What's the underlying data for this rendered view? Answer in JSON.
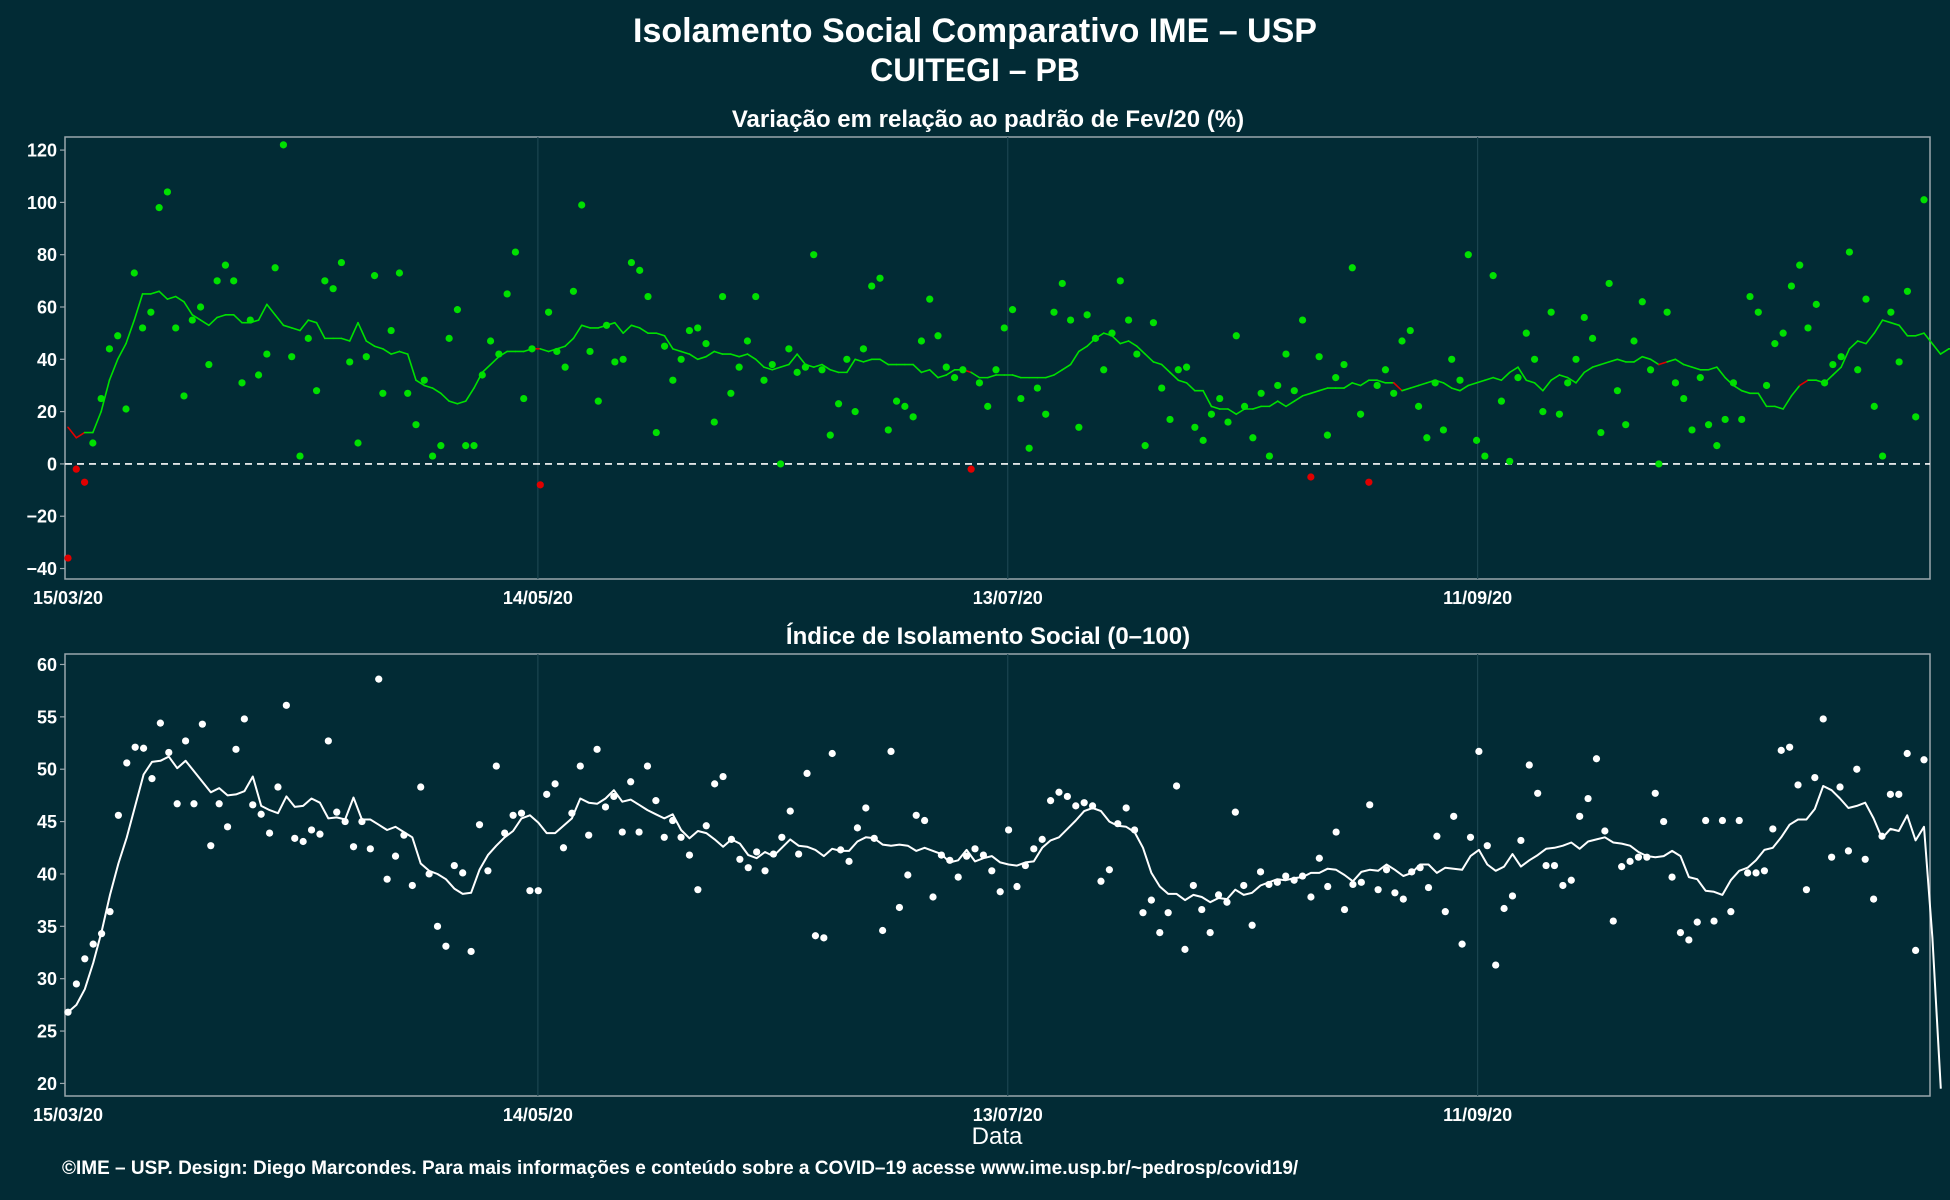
{
  "header": {
    "title": "Isolamento Social Comparativo IME – USP",
    "subtitle": "CUITEGI – PB"
  },
  "footer": {
    "credit": "©IME – USP. Design: Diego Marcondes. Para mais informações e conteúdo sobre a COVID–19 acesse www.ime.usp.br/~pedrosp/covid19/"
  },
  "colors": {
    "background": "#022b35",
    "panel_border": "#9aa7ad",
    "grid": "#1b4550",
    "positive": "#00e000",
    "negative": "#e00000",
    "index": "#ffffff"
  },
  "chart_data": [
    {
      "type": "scatter",
      "title": "Variação em relação ao padrão de Fev/20 (%)",
      "xlabel": "",
      "ylabel": "",
      "x_start": "15/03/20",
      "x_end": "07/11/20",
      "x_ticks": [
        "15/03/20",
        "14/05/20",
        "13/07/20",
        "11/09/20"
      ],
      "y_ticks": [
        -40,
        -20,
        0,
        20,
        40,
        60,
        80,
        100,
        120
      ],
      "ylim": [
        -44,
        125
      ],
      "reference_line": 0,
      "series": [
        {
          "kind": "points",
          "values": [
            -36,
            -2,
            -7,
            8,
            25,
            44,
            49,
            21,
            73,
            52,
            58,
            98,
            104,
            52,
            26,
            55,
            60,
            38,
            70,
            76,
            70,
            31,
            55,
            34,
            42,
            75,
            122,
            41,
            3,
            48,
            28,
            70,
            67,
            77,
            39,
            8,
            41,
            72,
            27,
            51,
            73,
            27,
            15,
            32,
            3,
            7,
            48,
            59,
            7,
            7,
            34,
            47,
            42,
            65,
            81,
            25,
            44,
            -8,
            58,
            43,
            37,
            66,
            99,
            43,
            24,
            53,
            39,
            40,
            77,
            74,
            64,
            12,
            45,
            32,
            40,
            51,
            52,
            46,
            16,
            64,
            27,
            37,
            47,
            64,
            32,
            38,
            0,
            44,
            35,
            37,
            80,
            36,
            11,
            23,
            40,
            20,
            44,
            68,
            71,
            13,
            24,
            22,
            18,
            47,
            63,
            49,
            37,
            33,
            36,
            -2,
            31,
            22,
            36,
            52,
            59,
            25,
            6,
            29,
            19,
            58,
            69,
            55,
            14,
            57,
            48,
            36,
            50,
            70,
            55,
            42,
            7,
            54,
            29,
            17,
            36,
            37,
            14,
            9,
            19,
            25,
            16,
            49,
            22,
            10,
            27,
            3,
            30,
            42,
            28,
            55,
            -5,
            41,
            11,
            33,
            38,
            75,
            19,
            -7,
            30,
            36,
            27,
            47,
            51,
            22,
            10,
            31,
            13,
            40,
            32,
            80,
            9,
            3,
            72,
            24,
            1,
            33,
            50,
            40,
            20,
            58,
            19,
            31,
            40,
            56,
            48,
            12,
            69,
            28,
            15,
            47,
            62,
            36,
            0,
            58,
            31,
            25,
            13,
            33,
            15,
            7,
            17,
            31,
            17,
            64,
            58,
            30,
            46,
            50,
            68,
            76,
            52,
            61,
            31,
            38,
            41,
            81,
            36,
            63,
            22,
            3,
            58,
            39,
            66,
            18,
            101
          ]
        },
        {
          "kind": "moving_average",
          "values": [
            14,
            10,
            12,
            12,
            20,
            32,
            40,
            46,
            55,
            65,
            65,
            66,
            63,
            64,
            62,
            57,
            55,
            53,
            56,
            57,
            57,
            54,
            54,
            55,
            61,
            57,
            53,
            52,
            51,
            55,
            54,
            48,
            48,
            48,
            47,
            54,
            47,
            45,
            44,
            42,
            43,
            42,
            32,
            30,
            29,
            27,
            24,
            23,
            24,
            29,
            35,
            38,
            41,
            43,
            43,
            43,
            44,
            44,
            43,
            44,
            45,
            48,
            53,
            52,
            52,
            53,
            54,
            50,
            53,
            52,
            50,
            50,
            49,
            44,
            43,
            42,
            40,
            41,
            43,
            42,
            42,
            41,
            42,
            40,
            37,
            36,
            37,
            38,
            42,
            38,
            37,
            38,
            36,
            35,
            35,
            40,
            39,
            40,
            40,
            38,
            38,
            38,
            38,
            35,
            36,
            33,
            34,
            36,
            36,
            35,
            33,
            33,
            34,
            34,
            34,
            33,
            33,
            33,
            33,
            34,
            36,
            38,
            43,
            45,
            48,
            50,
            49,
            46,
            47,
            45,
            42,
            39,
            38,
            35,
            32,
            31,
            28,
            28,
            22,
            21,
            21,
            19,
            21,
            21,
            22,
            22,
            24,
            22,
            24,
            26,
            27,
            28,
            29,
            29,
            29,
            31,
            30,
            32,
            32,
            31,
            31,
            28,
            29,
            30,
            31,
            32,
            31,
            29,
            28,
            30,
            31,
            32,
            33,
            32,
            35,
            37,
            32,
            31,
            28,
            32,
            34,
            33,
            31,
            35,
            37,
            38,
            39,
            40,
            39,
            39,
            41,
            40,
            38,
            39,
            40,
            38,
            37,
            36,
            36,
            37,
            33,
            30,
            28,
            27,
            27,
            22,
            22,
            21,
            26,
            30,
            32,
            32,
            31,
            34,
            37,
            44,
            47,
            46,
            50,
            55,
            54,
            53,
            49,
            49,
            50,
            46,
            42,
            44,
            44,
            48,
            40,
            44
          ]
        }
      ]
    },
    {
      "type": "scatter",
      "title": "Índice de Isolamento Social (0–100)",
      "xlabel": "Data",
      "ylabel": "",
      "x_start": "15/03/20",
      "x_end": "07/11/20",
      "x_ticks": [
        "15/03/20",
        "14/05/20",
        "13/07/20",
        "11/09/20"
      ],
      "y_ticks": [
        20,
        25,
        30,
        35,
        40,
        45,
        50,
        55,
        60
      ],
      "ylim": [
        18.8,
        61
      ],
      "series": [
        {
          "kind": "points",
          "values": [
            26.8,
            29.5,
            31.9,
            33.3,
            34.3,
            36.4,
            45.6,
            50.6,
            52.1,
            52,
            49.1,
            54.4,
            51.6,
            46.7,
            52.7,
            46.7,
            54.3,
            42.7,
            46.7,
            44.5,
            51.9,
            54.8,
            46.6,
            45.7,
            43.9,
            48.3,
            56.1,
            43.4,
            43.1,
            44.2,
            43.8,
            52.7,
            45.9,
            45,
            42.6,
            45,
            42.4,
            58.6,
            39.5,
            41.7,
            43.7,
            38.9,
            48.3,
            40,
            35,
            33.1,
            40.8,
            40.1,
            32.6,
            44.7,
            40.3,
            50.3,
            43.9,
            45.6,
            45.8,
            38.4,
            38.4,
            47.6,
            48.6,
            42.5,
            45.8,
            50.3,
            43.7,
            51.9,
            46.4,
            47.4,
            44,
            48.8,
            44,
            50.3,
            47,
            43.5,
            45.1,
            43.5,
            41.8,
            38.5,
            44.6,
            48.6,
            49.3,
            43.3,
            41.4,
            40.6,
            42.1,
            40.3,
            41.9,
            43.5,
            46,
            41.9,
            49.6,
            34.1,
            33.9,
            51.5,
            42.3,
            41.2,
            44.4,
            46.3,
            43.4,
            34.6,
            51.7,
            36.8,
            39.9,
            45.6,
            45.1,
            37.8,
            41.8,
            41.3,
            39.7,
            41.7,
            42.4,
            41.8,
            40.3,
            38.3,
            44.2,
            38.8,
            40.8,
            42.4,
            43.3,
            47,
            47.8,
            47.4,
            46.5,
            46.8,
            46.5,
            39.3,
            40.4,
            44.8,
            46.3,
            44.2,
            36.3,
            37.5,
            34.4,
            36.3,
            48.4,
            32.8,
            38.9,
            36.6,
            34.4,
            38,
            37.3,
            45.9,
            38.9,
            35.1,
            40.2,
            39,
            39.2,
            39.8,
            39.4,
            39.8,
            37.8,
            41.5,
            38.8,
            44,
            36.6,
            39,
            39.2,
            46.6,
            38.5,
            40.4,
            38.2,
            37.6,
            40.2,
            40.6,
            38.7,
            43.6,
            36.4,
            45.5,
            33.3,
            43.5,
            51.7,
            42.7,
            31.3,
            36.7,
            37.9,
            43.2,
            50.4,
            47.7,
            40.8,
            40.8,
            38.9,
            39.4,
            45.5,
            47.2,
            51,
            44.1,
            35.5,
            40.7,
            41.2,
            41.6,
            41.6,
            47.7,
            45,
            39.7,
            34.4,
            33.7,
            35.4,
            45.1,
            35.5,
            45.1,
            36.4,
            45.1,
            40.1,
            40.1,
            40.3,
            44.3,
            51.8,
            52.1,
            48.5,
            38.5,
            49.2,
            54.8,
            41.6,
            48.3,
            42.2,
            50,
            41.4,
            37.6,
            43.6,
            47.6,
            47.6,
            51.5,
            32.7,
            50.9
          ]
        },
        {
          "kind": "moving_average",
          "values": [
            26.8,
            27.5,
            29,
            31.5,
            34.5,
            38,
            41,
            43.5,
            46.5,
            49.5,
            50.7,
            50.8,
            51.2,
            50.1,
            50.8,
            49.8,
            48.8,
            47.8,
            48.2,
            47.5,
            47.6,
            47.9,
            49.3,
            46.5,
            46.1,
            45.8,
            47.4,
            46.4,
            46.5,
            47.2,
            46.8,
            45.3,
            45.4,
            45.2,
            47.3,
            45.2,
            45.2,
            44.7,
            44.2,
            44.5,
            44,
            43.5,
            41,
            40.3,
            40,
            39.5,
            38.6,
            38.1,
            38.2,
            40.4,
            41.8,
            42.7,
            43.5,
            44.1,
            45.3,
            45.6,
            44.9,
            43.9,
            43.9,
            44.6,
            45.3,
            47.2,
            46.8,
            46.7,
            47.2,
            48,
            46.9,
            47.1,
            46.6,
            46.1,
            45.7,
            45.3,
            45.7,
            44.2,
            43.4,
            44.1,
            43.9,
            43.3,
            42.6,
            43.3,
            42.9,
            41.8,
            41.5,
            42.1,
            41.7,
            42.5,
            43.3,
            42.7,
            42.6,
            42.3,
            41.7,
            42.4,
            42.2,
            42.2,
            43.1,
            43.5,
            43.4,
            42.8,
            42.7,
            42.8,
            42.7,
            42.2,
            42.5,
            42.2,
            41.9,
            41.1,
            41.3,
            42.3,
            41.2,
            41.5,
            41.7,
            41.1,
            40.9,
            40.8,
            41.1,
            41.2,
            42.5,
            43.2,
            43.5,
            44.3,
            45.1,
            46,
            46.3,
            46,
            45,
            44.6,
            44.5,
            44,
            42.5,
            40.1,
            38.8,
            38.1,
            38.1,
            37.5,
            38,
            37.8,
            37.3,
            37.7,
            37.6,
            38.5,
            38,
            38.2,
            38.9,
            39.2,
            39.5,
            39.4,
            39.6,
            39.7,
            40.1,
            40.1,
            40.5,
            40.4,
            39.9,
            39.3,
            40.2,
            40.4,
            40.3,
            40.9,
            40.4,
            39.8,
            40.1,
            40.9,
            40.9,
            40.1,
            40.6,
            40.5,
            40.4,
            41.7,
            42.3,
            40.9,
            40.3,
            40.7,
            41.9,
            40.7,
            41.3,
            41.8,
            42.4,
            42.5,
            42.7,
            43,
            42.4,
            43.1,
            43.3,
            43.5,
            43,
            42.9,
            42.7,
            42.1,
            41.7,
            41.6,
            41.7,
            42.2,
            41.7,
            39.7,
            39.5,
            38.4,
            38.3,
            38,
            39.4,
            40.3,
            40.6,
            41.3,
            42.3,
            42.5,
            43.5,
            44.7,
            45.2,
            45.2,
            46.2,
            48.4,
            48,
            47.2,
            46.3,
            46.5,
            46.8,
            45.3,
            43.4,
            44.3,
            44.1,
            45.6,
            43.2,
            44.5,
            33.9,
            19.5
          ]
        }
      ]
    }
  ]
}
